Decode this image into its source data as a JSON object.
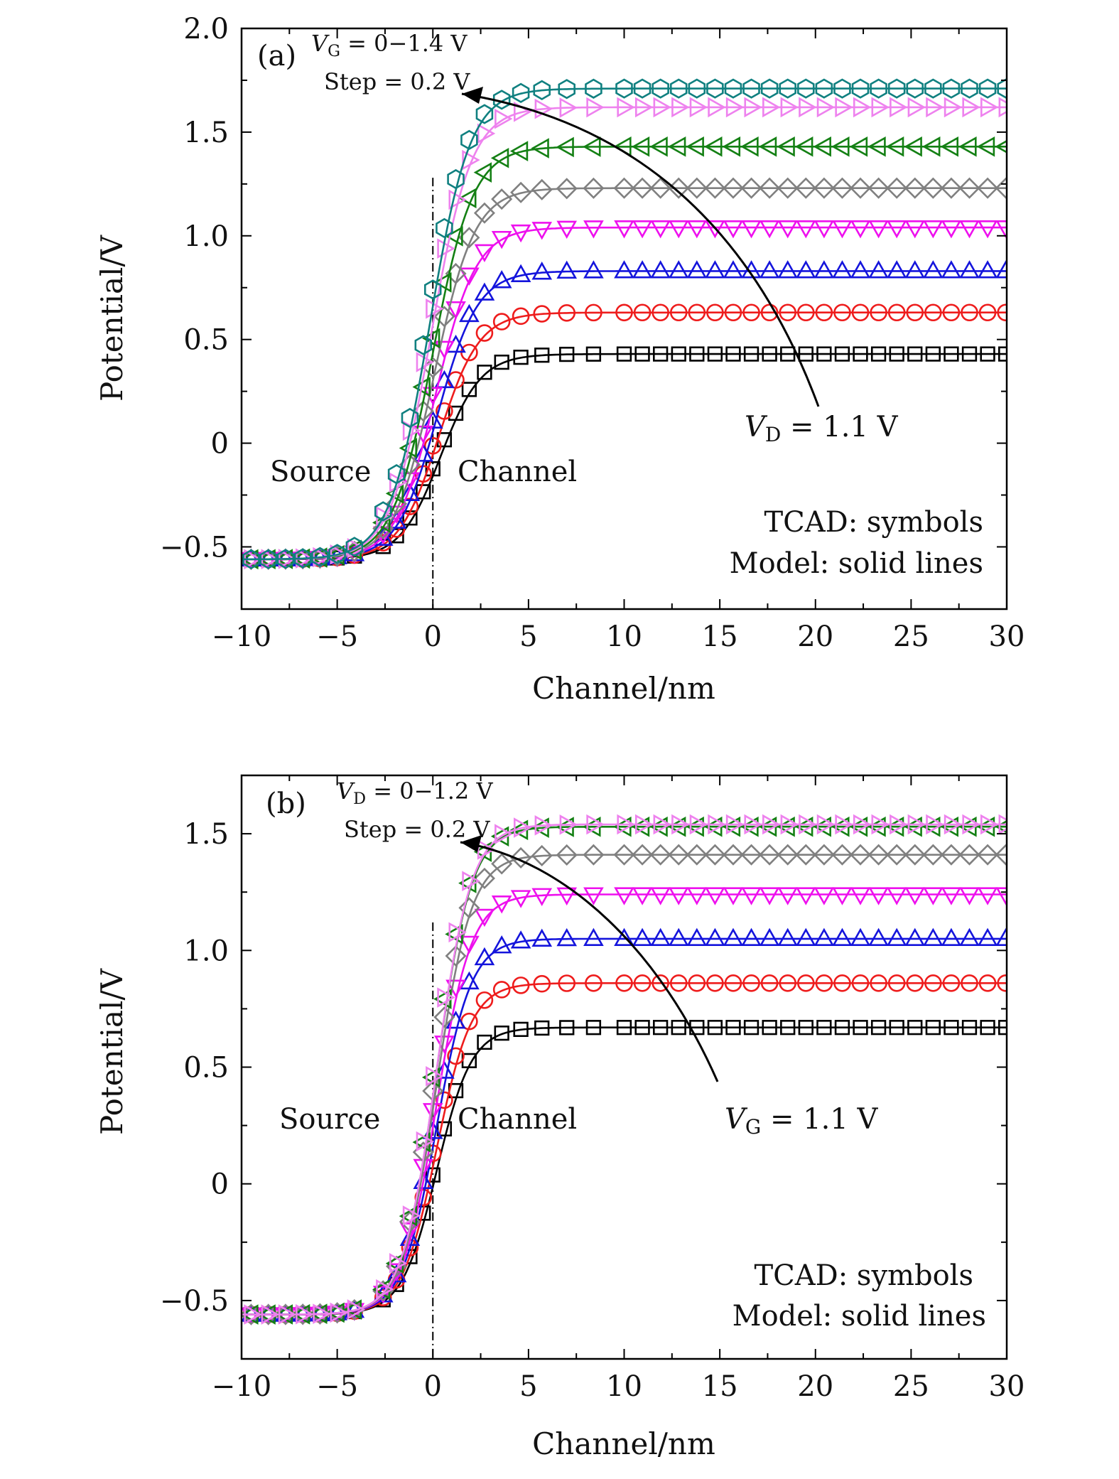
{
  "chart_data": [
    {
      "type": "scatter",
      "panel_label": "(a)",
      "xlabel": "Channel/nm",
      "ylabel": "Potential/V",
      "xlim": [
        -10,
        30
      ],
      "ylim": [
        -0.8,
        2.0
      ],
      "xticks": [
        -10,
        -5,
        0,
        5,
        10,
        15,
        20,
        25,
        30
      ],
      "yticks": [
        -0.5,
        0,
        0.5,
        1.0,
        1.5,
        2.0
      ],
      "xtick_labels": [
        "−10",
        "−5",
        "0",
        "5",
        "10",
        "15",
        "20",
        "25",
        "30"
      ],
      "ytick_labels": [
        "−0.5",
        "0",
        "0.5",
        "1.0",
        "1.5",
        "2.0"
      ],
      "grid": false,
      "annotations": {
        "sweep_line1": "V_G = 0−1.4 V",
        "sweep_line2": "Step = 0.2 V",
        "fixed_bias": "V_D = 1.1 V",
        "region_source": "Source",
        "region_channel": "Channel",
        "legend_line1": "TCAD: symbols",
        "legend_line2": "Model: solid lines"
      },
      "series": [
        {
          "color": "#000000",
          "marker": "square",
          "source_level": -0.56,
          "channel_level": 0.43
        },
        {
          "color": "#ee1c1c",
          "marker": "circle",
          "source_level": -0.56,
          "channel_level": 0.63
        },
        {
          "color": "#1414dc",
          "marker": "triangle-up",
          "source_level": -0.56,
          "channel_level": 0.83
        },
        {
          "color": "#ee10ee",
          "marker": "triangle-down",
          "source_level": -0.56,
          "channel_level": 1.04
        },
        {
          "color": "#808080",
          "marker": "diamond",
          "source_level": -0.56,
          "channel_level": 1.23
        },
        {
          "color": "#148014",
          "marker": "triangle-left",
          "source_level": -0.56,
          "channel_level": 1.43
        },
        {
          "color": "#ee82ee",
          "marker": "triangle-right",
          "source_level": -0.56,
          "channel_level": 1.62
        },
        {
          "color": "#108080",
          "marker": "hexagon",
          "source_level": -0.56,
          "channel_level": 1.71
        }
      ]
    },
    {
      "type": "scatter",
      "panel_label": "(b)",
      "xlabel": "Channel/nm",
      "ylabel": "Potential/V",
      "xlim": [
        -10,
        30
      ],
      "ylim": [
        -0.75,
        1.75
      ],
      "xticks": [
        -10,
        -5,
        0,
        5,
        10,
        15,
        20,
        25,
        30
      ],
      "yticks": [
        -0.5,
        0,
        0.5,
        1.0,
        1.5
      ],
      "xtick_labels": [
        "−10",
        "−5",
        "0",
        "5",
        "10",
        "15",
        "20",
        "25",
        "30"
      ],
      "ytick_labels": [
        "−0.5",
        "0",
        "0.5",
        "1.0",
        "1.5"
      ],
      "grid": false,
      "annotations": {
        "sweep_line1": "V_D = 0−1.2 V",
        "sweep_line2": "Step = 0.2 V",
        "fixed_bias": "V_G = 1.1 V",
        "region_source": "Source",
        "region_channel": "Channel",
        "legend_line1": "TCAD: symbols",
        "legend_line2": "Model: solid lines"
      },
      "series": [
        {
          "color": "#000000",
          "marker": "square",
          "source_level": -0.56,
          "channel_level": 0.67
        },
        {
          "color": "#ee1c1c",
          "marker": "circle",
          "source_level": -0.56,
          "channel_level": 0.86
        },
        {
          "color": "#1414dc",
          "marker": "triangle-up",
          "source_level": -0.56,
          "channel_level": 1.05
        },
        {
          "color": "#ee10ee",
          "marker": "triangle-down",
          "source_level": -0.56,
          "channel_level": 1.24
        },
        {
          "color": "#808080",
          "marker": "diamond",
          "source_level": -0.56,
          "channel_level": 1.41
        },
        {
          "color": "#148014",
          "marker": "triangle-left",
          "source_level": -0.56,
          "channel_level": 1.53
        },
        {
          "color": "#ee82ee",
          "marker": "triangle-right",
          "source_level": -0.56,
          "channel_level": 1.54
        }
      ]
    }
  ]
}
